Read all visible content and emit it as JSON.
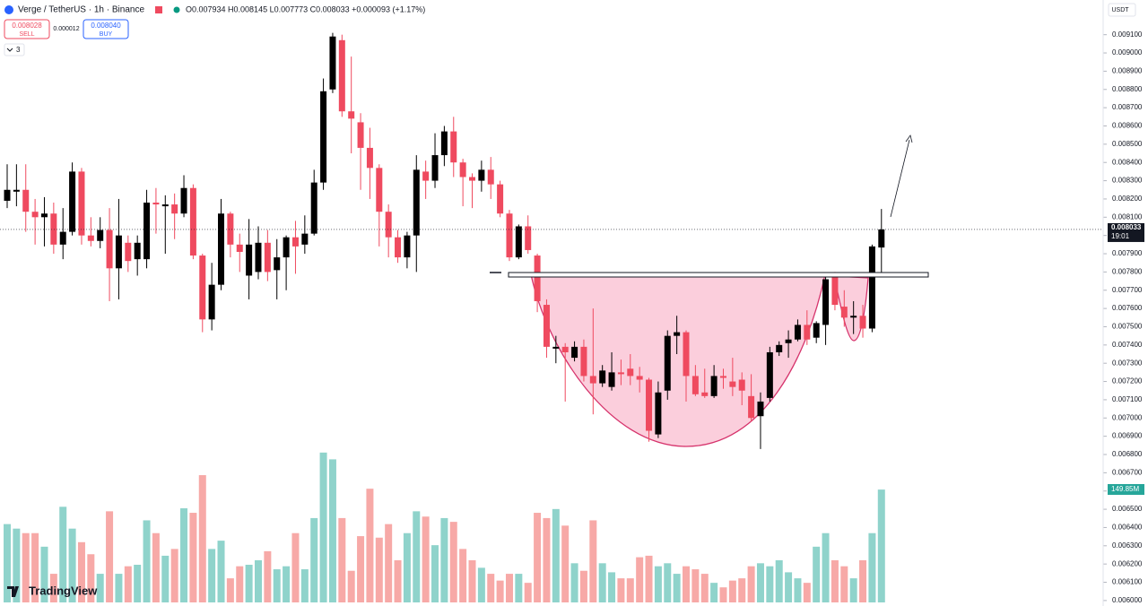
{
  "header": {
    "symbol": "Verge / TetherUS · 1h · Binance",
    "ohlc": "O0.007934 H0.008145 L0.007773 C0.008033 +0.000093 (+1.17%)",
    "sell_price": "0.008028",
    "sell": "SELL",
    "spread": "0.000012",
    "buy_price": "0.008040",
    "buy": "BUY",
    "indicators": "3",
    "currency": "USDT",
    "price_tag": "0.008033",
    "countdown": "19:01",
    "volume_tag": "149.85M",
    "brand": "TradingView"
  },
  "chart_data": {
    "type": "candlestick",
    "up_color": "#000000",
    "down_color": "#ef4a5f",
    "volume_up_color": "#8fd3cb",
    "volume_down_color": "#f7a9a7",
    "ylim": [
      0.00597,
      0.00929
    ],
    "yticks": [
      {
        "value": 0.006,
        "label": "0.006000"
      },
      {
        "value": 0.0061,
        "label": "0.006100"
      },
      {
        "value": 0.0062,
        "label": "0.006200"
      },
      {
        "value": 0.0063,
        "label": "0.006300"
      },
      {
        "value": 0.0064,
        "label": "0.006400"
      },
      {
        "value": 0.0065,
        "label": "0.006500"
      },
      {
        "value": 0.0066,
        "label": "0.006600"
      },
      {
        "value": 0.0067,
        "label": "0.006700"
      },
      {
        "value": 0.0068,
        "label": "0.006800"
      },
      {
        "value": 0.0069,
        "label": "0.006900"
      },
      {
        "value": 0.007,
        "label": "0.007000"
      },
      {
        "value": 0.0071,
        "label": "0.007100"
      },
      {
        "value": 0.0072,
        "label": "0.007200"
      },
      {
        "value": 0.0073,
        "label": "0.007300"
      },
      {
        "value": 0.0074,
        "label": "0.007400"
      },
      {
        "value": 0.0075,
        "label": "0.007500"
      },
      {
        "value": 0.0076,
        "label": "0.007600"
      },
      {
        "value": 0.0077,
        "label": "0.007700"
      },
      {
        "value": 0.0078,
        "label": "0.007800"
      },
      {
        "value": 0.0079,
        "label": "0.007900"
      },
      {
        "value": 0.008,
        "label": "0.008000"
      },
      {
        "value": 0.0081,
        "label": "0.008100"
      },
      {
        "value": 0.0082,
        "label": "0.008200"
      },
      {
        "value": 0.0083,
        "label": "0.008300"
      },
      {
        "value": 0.0084,
        "label": "0.008400"
      },
      {
        "value": 0.0085,
        "label": "0.008500"
      },
      {
        "value": 0.0086,
        "label": "0.008600"
      },
      {
        "value": 0.0087,
        "label": "0.008700"
      },
      {
        "value": 0.0088,
        "label": "0.008800"
      },
      {
        "value": 0.0089,
        "label": "0.008900"
      },
      {
        "value": 0.009,
        "label": "0.009000"
      },
      {
        "value": 0.0091,
        "label": "0.009100"
      }
    ],
    "open": [
      0.00819,
      0.00824,
      0.00825,
      0.00813,
      0.0081,
      0.00812,
      0.00795,
      0.00802,
      0.00835,
      0.008,
      0.00797,
      0.00803,
      0.00782,
      0.00796,
      0.00787,
      0.00787,
      0.00818,
      0.00816,
      0.00817,
      0.00812,
      0.00826,
      0.00789,
      0.00754,
      0.00773,
      0.00812,
      0.00795,
      0.00778,
      0.0078,
      0.00796,
      0.00781,
      0.00788,
      0.00799,
      0.00795,
      0.00801,
      0.00829,
      0.0088,
      0.00907,
      0.00868,
      0.00862,
      0.00848,
      0.00837,
      0.00813,
      0.00799,
      0.00788,
      0.008,
      0.00835,
      0.0083,
      0.00844,
      0.00857,
      0.0084,
      0.00832,
      0.0083,
      0.00836,
      0.00828,
      0.00812,
      0.00788,
      0.00805,
      0.00789,
      0.00762,
      0.00738,
      0.00739,
      0.00733,
      0.00739,
      0.00723,
      0.00719,
      0.00717,
      0.00725,
      0.00727,
      0.00723,
      0.00721,
      0.00691,
      0.00715,
      0.00745,
      0.00747,
      0.00723,
      0.00714,
      0.00712,
      0.00723,
      0.0072,
      0.00721,
      0.00712,
      0.00701,
      0.00711,
      0.00736,
      0.00741,
      0.00743,
      0.00751,
      0.00744,
      0.00751,
      0.00778,
      0.00761,
      0.00755,
      0.00756,
      0.00749,
      0.007934
    ],
    "high": [
      0.00839,
      0.00839,
      0.00839,
      0.0082,
      0.00821,
      0.00818,
      0.00815,
      0.0084,
      0.00837,
      0.0081,
      0.0081,
      0.00815,
      0.0082,
      0.008,
      0.008,
      0.00825,
      0.00826,
      0.00822,
      0.00823,
      0.00833,
      0.00828,
      0.0079,
      0.00785,
      0.0082,
      0.00813,
      0.00801,
      0.00809,
      0.00805,
      0.00803,
      0.00798,
      0.008,
      0.00808,
      0.00811,
      0.00836,
      0.00886,
      0.00911,
      0.0091,
      0.00898,
      0.00867,
      0.00859,
      0.00839,
      0.00817,
      0.00803,
      0.00802,
      0.00844,
      0.00841,
      0.00856,
      0.0086,
      0.00865,
      0.00842,
      0.00834,
      0.00841,
      0.00843,
      0.0083,
      0.00814,
      0.00806,
      0.00811,
      0.0079,
      0.00765,
      0.00745,
      0.00741,
      0.00742,
      0.00743,
      0.0076,
      0.00729,
      0.00736,
      0.00732,
      0.00735,
      0.00728,
      0.00722,
      0.0072,
      0.00748,
      0.00756,
      0.00748,
      0.00729,
      0.00727,
      0.00729,
      0.00727,
      0.00733,
      0.00725,
      0.00724,
      0.00714,
      0.00739,
      0.00742,
      0.00748,
      0.00754,
      0.00759,
      0.00753,
      0.00778,
      0.0078,
      0.0077,
      0.00764,
      0.00762,
      0.00795,
      0.008145
    ],
    "low": [
      0.00815,
      0.00816,
      0.00802,
      0.00795,
      0.00794,
      0.0079,
      0.00787,
      0.008,
      0.00795,
      0.00794,
      0.00793,
      0.00764,
      0.00765,
      0.0078,
      0.00778,
      0.00782,
      0.00801,
      0.0079,
      0.00798,
      0.0081,
      0.00787,
      0.00747,
      0.00748,
      0.0077,
      0.00788,
      0.0078,
      0.00765,
      0.00776,
      0.00775,
      0.00765,
      0.0077,
      0.00779,
      0.0079,
      0.008,
      0.00825,
      0.00878,
      0.00865,
      0.00845,
      0.00825,
      0.0082,
      0.00794,
      0.00788,
      0.00785,
      0.00782,
      0.0078,
      0.0082,
      0.00826,
      0.00838,
      0.00832,
      0.00816,
      0.00815,
      0.00824,
      0.0082,
      0.0081,
      0.00786,
      0.00787,
      0.0079,
      0.00758,
      0.00733,
      0.0073,
      0.00709,
      0.00731,
      0.0072,
      0.00702,
      0.00717,
      0.00715,
      0.00718,
      0.00718,
      0.00714,
      0.00687,
      0.00689,
      0.0071,
      0.00735,
      0.00709,
      0.00712,
      0.00711,
      0.00711,
      0.00716,
      0.00712,
      0.00707,
      0.00698,
      0.00683,
      0.00709,
      0.00734,
      0.00733,
      0.00742,
      0.0074,
      0.00741,
      0.0074,
      0.00759,
      0.0075,
      0.00746,
      0.00744,
      0.00747,
      0.007773
    ],
    "close": [
      0.00825,
      0.00825,
      0.00813,
      0.0081,
      0.00812,
      0.00795,
      0.00802,
      0.00835,
      0.008,
      0.00797,
      0.00803,
      0.00782,
      0.008,
      0.00786,
      0.00796,
      0.00818,
      0.00817,
      0.00817,
      0.00812,
      0.00826,
      0.00789,
      0.00754,
      0.00773,
      0.00812,
      0.00795,
      0.00791,
      0.00795,
      0.00796,
      0.0078,
      0.00788,
      0.00799,
      0.00794,
      0.00801,
      0.00829,
      0.00879,
      0.00909,
      0.00868,
      0.00864,
      0.00848,
      0.00837,
      0.00813,
      0.00799,
      0.00788,
      0.008,
      0.00836,
      0.0083,
      0.00844,
      0.00857,
      0.0084,
      0.00832,
      0.0083,
      0.00836,
      0.00828,
      0.00812,
      0.00788,
      0.00805,
      0.00792,
      0.00764,
      0.00739,
      0.00739,
      0.00736,
      0.00739,
      0.00723,
      0.00719,
      0.00726,
      0.00725,
      0.00724,
      0.00723,
      0.00721,
      0.00693,
      0.00714,
      0.00745,
      0.00747,
      0.00723,
      0.00713,
      0.00712,
      0.00723,
      0.00722,
      0.00717,
      0.00715,
      0.007,
      0.00709,
      0.00736,
      0.0074,
      0.00743,
      0.00751,
      0.00743,
      0.00752,
      0.00776,
      0.00762,
      0.00755,
      0.00756,
      0.00749,
      0.00794,
      0.008033
    ],
    "volume": [
      104,
      98,
      92,
      92,
      74,
      38,
      127,
      98,
      80,
      64,
      38,
      121,
      38,
      48,
      50,
      109,
      92,
      62,
      71,
      125,
      119,
      169,
      71,
      82,
      32,
      48,
      50,
      56,
      68,
      44,
      48,
      92,
      44,
      112,
      199,
      190,
      112,
      42,
      88,
      151,
      86,
      104,
      56,
      92,
      121,
      114,
      76,
      112,
      107,
      71,
      56,
      46,
      38,
      29,
      38,
      38,
      26,
      119,
      112,
      124,
      102,
      52,
      42,
      109,
      52,
      40,
      32,
      32,
      60,
      62,
      48,
      52,
      38,
      48,
      44,
      38,
      26,
      20,
      29,
      32,
      48,
      52,
      48,
      56,
      40,
      32,
      26,
      74,
      92,
      56,
      48,
      32,
      56,
      92,
      149.85
    ]
  }
}
